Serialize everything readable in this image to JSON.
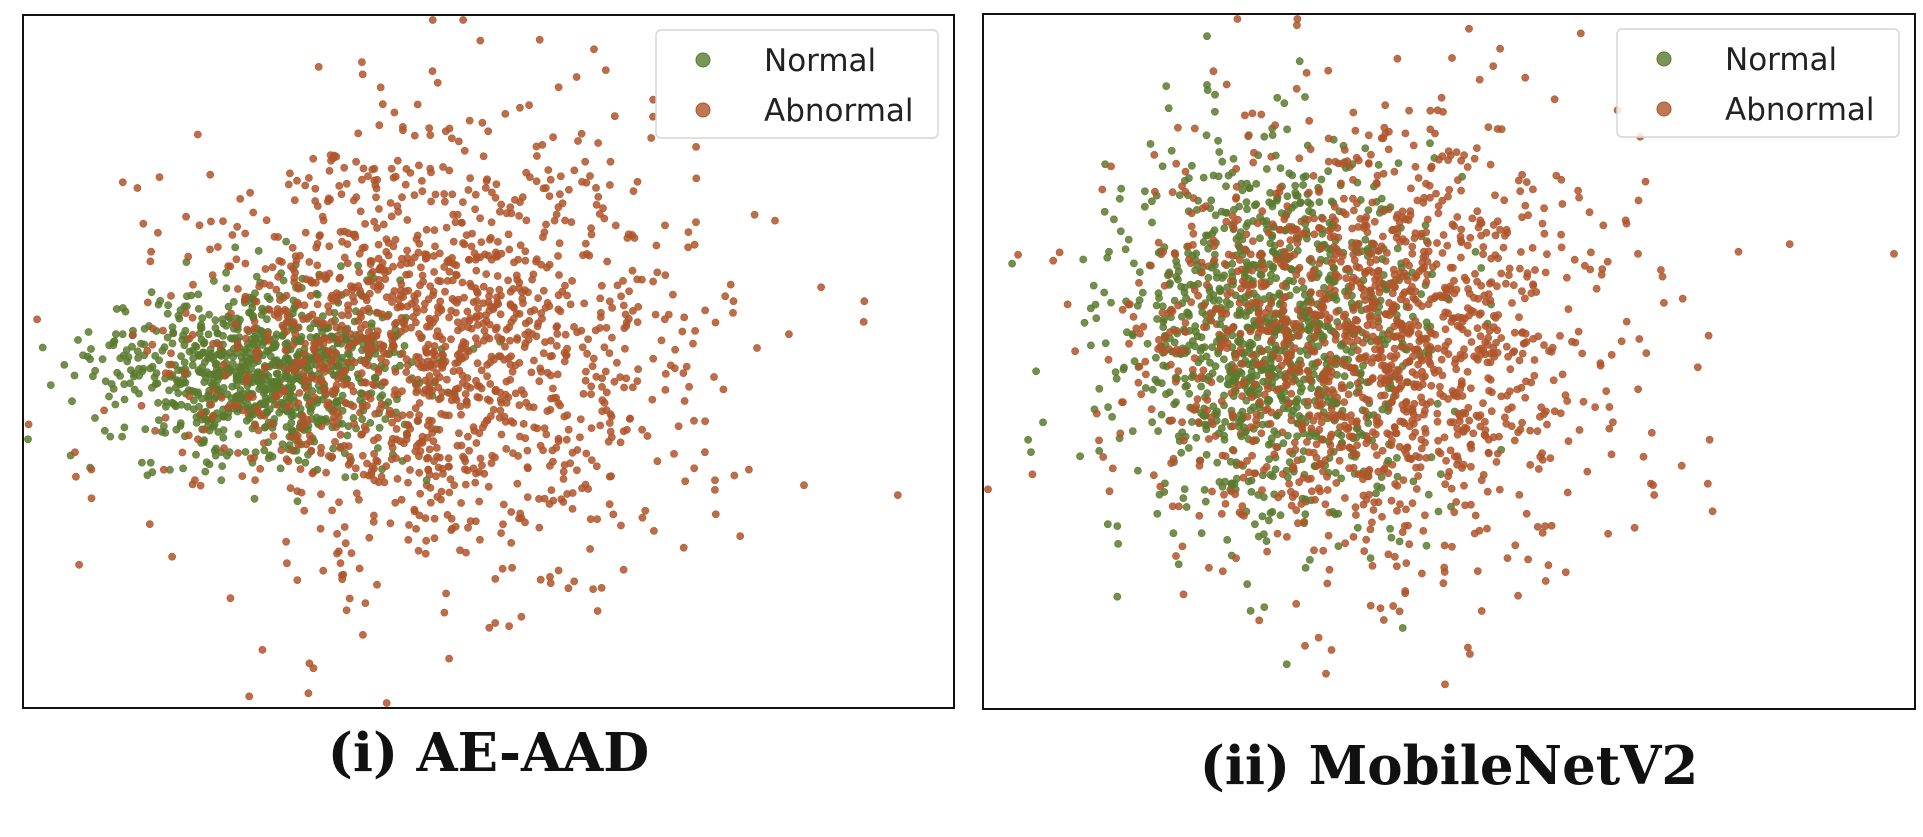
{
  "chart_data": [
    {
      "type": "scatter",
      "caption": "(i) AE-AAD",
      "legend_position": "top-right",
      "grid": false,
      "axis_ticks": false,
      "xlim": [
        -4.2,
        6.6
      ],
      "ylim": [
        -3.3,
        3.6
      ],
      "series": [
        {
          "name": "Normal",
          "color": "#5a7a2e",
          "center": [
            -1.5,
            0.05
          ],
          "spread": [
            0.85,
            0.42
          ],
          "count": 900,
          "seed": 11,
          "outliers": [
            [
              -3.7,
              -0.8
            ],
            [
              -3.3,
              -0.55
            ],
            [
              -2.8,
              -1.0
            ],
            [
              -3.5,
              0.2
            ]
          ]
        },
        {
          "name": "Abnormal",
          "color": "#b0552a",
          "center": [
            0.5,
            0.3
          ],
          "spread": [
            1.45,
            1.05
          ],
          "count": 1500,
          "seed": 29,
          "outliers": [
            [
              4.9,
              -1.1
            ],
            [
              5.6,
              0.55
            ],
            [
              5.1,
              0.9
            ],
            [
              -0.9,
              -2.9
            ],
            [
              1.8,
              3.4
            ],
            [
              6.0,
              -1.2
            ]
          ]
        }
      ]
    },
    {
      "type": "scatter",
      "caption": "(ii) MobileNetV2",
      "legend_position": "top-right",
      "grid": false,
      "axis_ticks": false,
      "xlim": [
        -4.5,
        7.0
      ],
      "ylim": [
        -3.6,
        3.4
      ],
      "series": [
        {
          "name": "Normal",
          "color": "#5a7a2e",
          "center": [
            -1.0,
            0.2
          ],
          "spread": [
            0.95,
            0.95
          ],
          "count": 1100,
          "seed": 47,
          "outliers": [
            [
              -4.2,
              0.9
            ],
            [
              -4.0,
              -0.9
            ],
            [
              -3.9,
              -0.2
            ]
          ]
        },
        {
          "name": "Abnormal",
          "color": "#b0552a",
          "center": [
            0.3,
            0.1
          ],
          "spread": [
            1.45,
            1.1
          ],
          "count": 1500,
          "seed": 83,
          "outliers": [
            [
              6.8,
              1.0
            ],
            [
              5.5,
              1.1
            ],
            [
              4.5,
              -0.9
            ],
            [
              1.5,
              3.3
            ],
            [
              2.2,
              2.8
            ],
            [
              1.2,
              -3.4
            ]
          ]
        }
      ]
    }
  ]
}
